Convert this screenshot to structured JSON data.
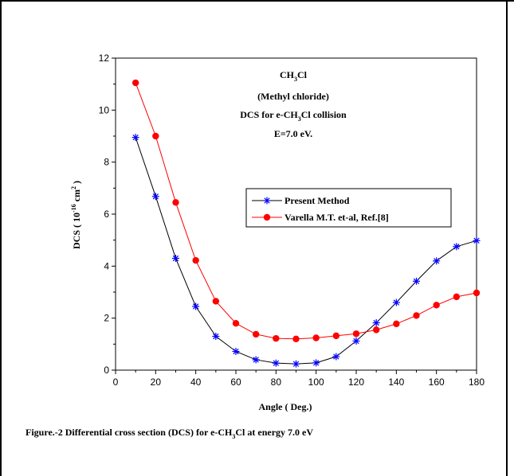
{
  "chart_data": {
    "type": "line",
    "x": [
      10,
      20,
      30,
      40,
      50,
      60,
      70,
      80,
      90,
      100,
      110,
      120,
      130,
      140,
      150,
      160,
      170,
      180
    ],
    "series": [
      {
        "name": "Present Method",
        "color": "#0000ff",
        "line_color": "#000000",
        "marker": "star",
        "values": [
          8.95,
          6.68,
          4.3,
          2.45,
          1.3,
          0.72,
          0.4,
          0.27,
          0.24,
          0.28,
          0.52,
          1.12,
          1.82,
          2.6,
          3.42,
          4.2,
          4.75,
          4.98
        ]
      },
      {
        "name": "Varella M.T. et-al, Ref.[8]",
        "color": "#ff0000",
        "line_color": "#ff0000",
        "marker": "circle",
        "values": [
          11.05,
          9.0,
          6.45,
          4.22,
          2.65,
          1.8,
          1.38,
          1.22,
          1.2,
          1.24,
          1.32,
          1.4,
          1.55,
          1.78,
          2.1,
          2.5,
          2.82,
          2.97
        ]
      }
    ],
    "xlabel": "Angle ( Deg.)",
    "ylabel": {
      "prefix": "DCS ( 10",
      "exponent": "-16",
      "unit": " cm",
      "unit_exponent": "2",
      "suffix": " )"
    },
    "xlim": [
      0,
      180
    ],
    "ylim": [
      0,
      12
    ],
    "xticks": [
      "0",
      "20",
      "40",
      "60",
      "80",
      "100",
      "120",
      "140",
      "160",
      "180"
    ],
    "yticks": [
      "0",
      "2",
      "4",
      "6",
      "8",
      "10",
      "12"
    ],
    "grid": false,
    "legend_position": "center-right",
    "annotation": {
      "line1": {
        "a": "CH",
        "sub": "3",
        "b": "Cl"
      },
      "line2": "(Methyl chloride)",
      "line3": {
        "a": "DCS for e-CH",
        "sub": "3",
        "b": "Cl collision"
      },
      "line4": "E=7.0 eV."
    }
  },
  "caption": {
    "a": "Figure.-2  Differential cross section (DCS) for e-CH",
    "sub": "3",
    "b": "Cl at energy 7.0 eV"
  }
}
